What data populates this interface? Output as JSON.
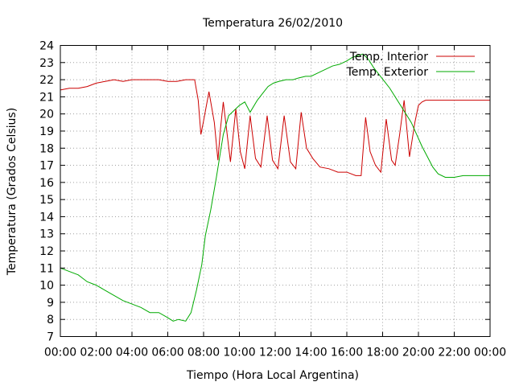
{
  "chart_data": {
    "type": "line",
    "title": "Temperatura 26/02/2010",
    "xlabel": "Tiempo (Hora Local Argentina)",
    "ylabel": "Temperatura (Grados Celsius)",
    "xlim": [
      0,
      24
    ],
    "ylim": [
      7,
      24
    ],
    "x_ticks": [
      "00:00",
      "02:00",
      "04:00",
      "06:00",
      "08:00",
      "10:00",
      "12:00",
      "14:00",
      "16:00",
      "18:00",
      "20:00",
      "22:00",
      "00:00"
    ],
    "y_ticks": [
      7,
      8,
      9,
      10,
      11,
      12,
      13,
      14,
      15,
      16,
      17,
      18,
      19,
      20,
      21,
      22,
      23,
      24
    ],
    "grid": true,
    "legend_position": "top-right",
    "series": [
      {
        "name": "Temp. Interior",
        "color": "#cc0000",
        "x": [
          0,
          0.5,
          1,
          1.5,
          2,
          2.5,
          3,
          3.5,
          4,
          4.5,
          5,
          5.5,
          6,
          6.5,
          7,
          7.5,
          7.7,
          7.85,
          8.0,
          8.3,
          8.6,
          8.8,
          8.95,
          9.1,
          9.5,
          9.8,
          10.05,
          10.3,
          10.6,
          10.9,
          11.2,
          11.55,
          11.85,
          12.15,
          12.5,
          12.85,
          13.15,
          13.45,
          13.75,
          14.1,
          14.5,
          15,
          15.5,
          16,
          16.5,
          16.8,
          17.05,
          17.3,
          17.6,
          17.9,
          18.2,
          18.5,
          18.7,
          18.95,
          19.2,
          19.5,
          19.8,
          20.0,
          20.2,
          20.4,
          20.7,
          21,
          21.5,
          22,
          23,
          24
        ],
        "y": [
          21.4,
          21.5,
          21.5,
          21.6,
          21.8,
          21.9,
          22.0,
          21.9,
          22.0,
          22.0,
          22.0,
          22.0,
          21.9,
          21.9,
          22.0,
          22.0,
          20.8,
          18.8,
          19.6,
          21.3,
          19.5,
          17.3,
          19.2,
          20.7,
          17.2,
          20.3,
          17.8,
          16.8,
          19.9,
          17.4,
          16.9,
          19.9,
          17.3,
          16.8,
          19.9,
          17.2,
          16.8,
          20.1,
          18.0,
          17.4,
          16.9,
          16.8,
          16.6,
          16.6,
          16.4,
          16.4,
          19.8,
          17.8,
          17.0,
          16.6,
          19.7,
          17.3,
          17.0,
          18.8,
          20.8,
          17.5,
          19.5,
          20.5,
          20.7,
          20.8,
          20.8,
          20.8,
          20.8,
          20.8,
          20.8,
          20.8
        ]
      },
      {
        "name": "Temp. Exterior",
        "color": "#00aa00",
        "x": [
          0,
          0.5,
          1,
          1.5,
          2,
          2.5,
          3,
          3.5,
          4,
          4.5,
          5,
          5.5,
          6,
          6.3,
          6.6,
          7,
          7.3,
          7.6,
          7.9,
          8.1,
          8.4,
          8.7,
          8.9,
          9.1,
          9.4,
          9.7,
          10.0,
          10.3,
          10.6,
          11,
          11.3,
          11.6,
          11.9,
          12.2,
          12.6,
          13,
          13.3,
          13.7,
          14.0,
          14.4,
          14.8,
          15.2,
          15.6,
          16.0,
          16.3,
          16.6,
          16.9,
          17.2,
          17.5,
          17.8,
          18.1,
          18.4,
          18.7,
          19.0,
          19.3,
          19.6,
          19.9,
          20.2,
          20.5,
          20.8,
          21.1,
          21.5,
          22,
          22.5,
          23,
          23.5,
          24
        ],
        "y": [
          11.0,
          10.8,
          10.6,
          10.2,
          10.0,
          9.7,
          9.4,
          9.1,
          8.9,
          8.7,
          8.4,
          8.4,
          8.1,
          7.9,
          8.0,
          7.9,
          8.4,
          9.7,
          11.2,
          12.9,
          14.4,
          16.2,
          17.5,
          18.8,
          19.9,
          20.2,
          20.5,
          20.7,
          20.1,
          20.8,
          21.2,
          21.6,
          21.8,
          21.9,
          22.0,
          22.0,
          22.1,
          22.2,
          22.2,
          22.4,
          22.6,
          22.8,
          22.9,
          23.1,
          23.3,
          23.4,
          23.5,
          23.2,
          22.7,
          22.3,
          21.9,
          21.5,
          21.0,
          20.5,
          20.0,
          19.5,
          18.8,
          18.1,
          17.5,
          16.9,
          16.5,
          16.3,
          16.3,
          16.4,
          16.4,
          16.4,
          16.4
        ]
      }
    ]
  }
}
